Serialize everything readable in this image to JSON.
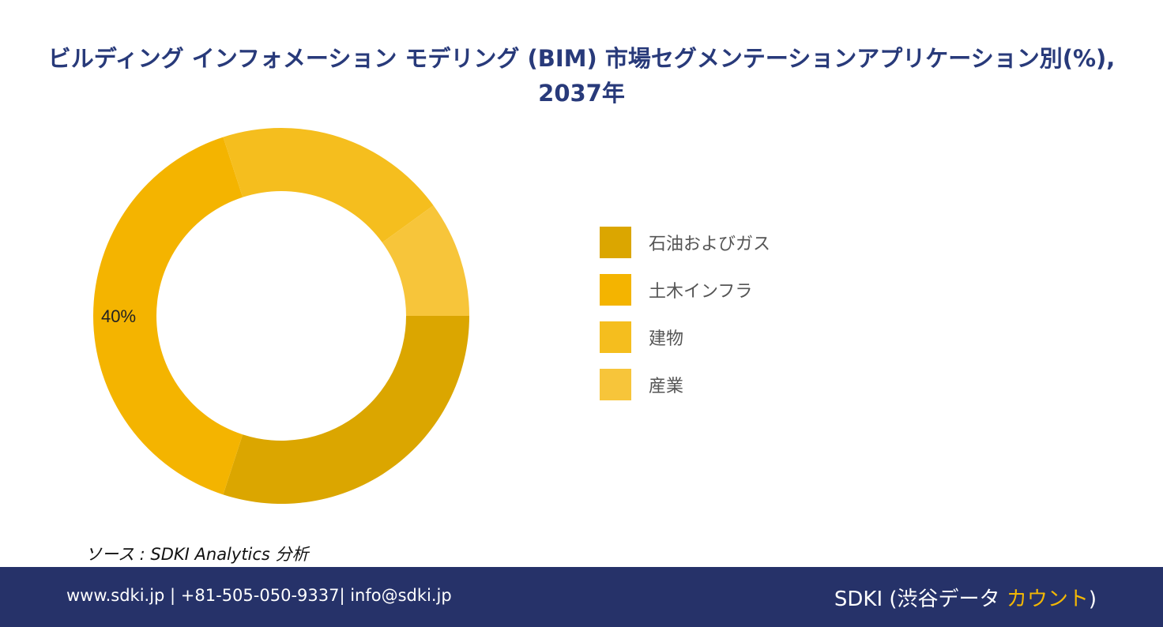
{
  "title": "ビルディング インフォメーション モデリング (BIM) 市場セグメンテーションアプリケーション別(%), 2037年",
  "chart_data": {
    "type": "pie",
    "style": "donut",
    "categories": [
      "石油およびガス",
      "土木インフラ",
      "建物",
      "産業"
    ],
    "values": [
      30,
      40,
      20,
      10
    ],
    "colors": [
      "#dba600",
      "#f4b400",
      "#f5be1e",
      "#f7c53a"
    ],
    "data_labels": [
      "",
      "40%",
      "",
      ""
    ],
    "legend_position": "right"
  },
  "source": "ソース : SDKI Analytics 分析",
  "footer": {
    "contact": "www.sdki.jp | +81-505-050-9337| info@sdki.jp",
    "brand_prefix": "SDKI (渋谷データ ",
    "brand_accent": "カウント",
    "brand_suffix": ")"
  }
}
